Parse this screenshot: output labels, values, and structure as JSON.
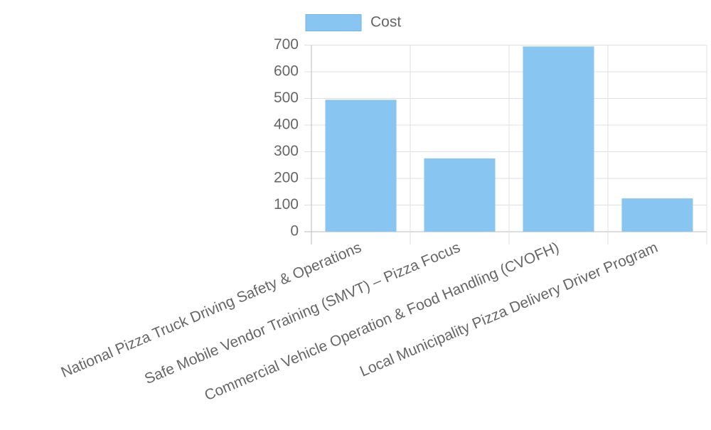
{
  "chart_data": {
    "type": "bar",
    "categories": [
      "National Pizza Truck Driving Safety & Operations",
      "Safe Mobile Vendor Training (SMVT) – Pizza Focus",
      "Commercial Vehicle Operation & Food Handling (CVOFH)",
      "Local Municipality Pizza Delivery Driver Program"
    ],
    "series": [
      {
        "name": "Cost",
        "color": "#88c6f1",
        "values": [
          495,
          275,
          695,
          125
        ]
      }
    ],
    "ylim": [
      0,
      700
    ],
    "yticks": [
      0,
      100,
      200,
      300,
      400,
      500,
      600,
      700
    ],
    "grid": true,
    "legend": "top"
  }
}
